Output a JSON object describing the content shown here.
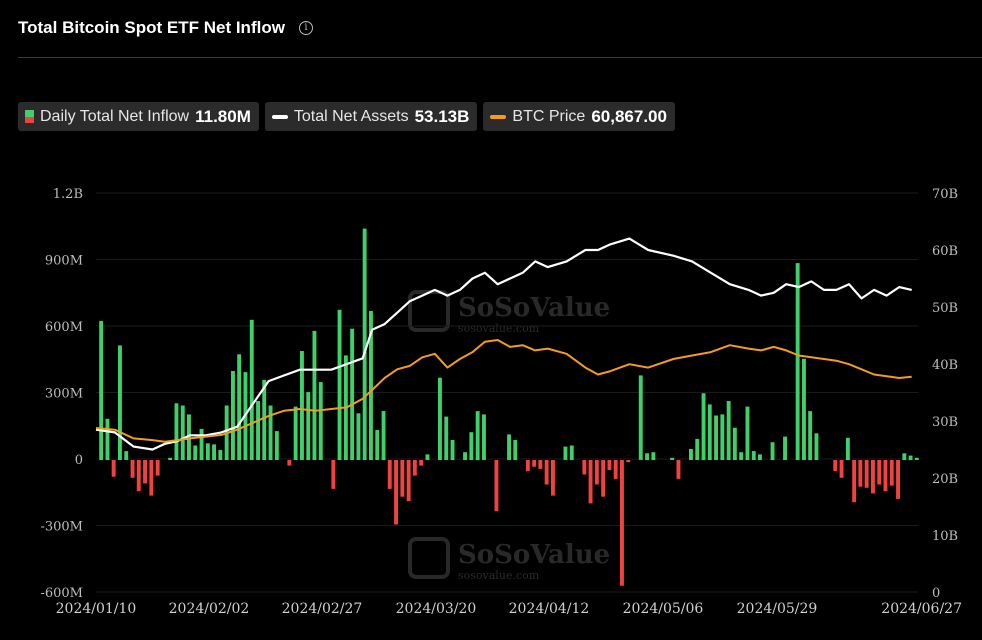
{
  "header": {
    "title": "Total Bitcoin Spot ETF Net Inflow",
    "info_icon": "info-icon"
  },
  "legend": [
    {
      "label": "Daily Total Net Inflow",
      "value": "11.80M",
      "swatch": "bar"
    },
    {
      "label": "Total Net Assets",
      "value": "53.13B",
      "swatch": "line",
      "color": "#ffffff"
    },
    {
      "label": "BTC Price",
      "value": "60,867.00",
      "swatch": "line",
      "color": "#f39c1f"
    }
  ],
  "watermark": {
    "brand": "SoSoValue",
    "site": "sosovalue.com"
  },
  "colors": {
    "positive": "#3ed069",
    "negative": "#f2423f",
    "assets": "#ffffff",
    "price": "#f39c1f"
  },
  "chart_data": {
    "type": "bar",
    "x_labels": [
      "2024/01/10",
      "2024/02/02",
      "2024/02/27",
      "2024/03/20",
      "2024/04/12",
      "2024/05/06",
      "2024/05/29",
      "2024/06/27"
    ],
    "left_axis": {
      "ticks": [
        "1.2B",
        "900M",
        "600M",
        "300M",
        "0",
        "-300M",
        "-600M"
      ],
      "range_M": [
        -600,
        1200
      ]
    },
    "right_axis": {
      "ticks": [
        "70B",
        "60B",
        "50B",
        "40B",
        "30B",
        "20B",
        "10B",
        "0"
      ],
      "range_B": [
        0,
        70
      ]
    },
    "series": [
      {
        "name": "Daily Total Net Inflow",
        "unit": "M",
        "values": [
          625,
          185,
          -75,
          515,
          40,
          -80,
          -140,
          -105,
          -160,
          -70,
          0,
          10,
          255,
          245,
          205,
          65,
          140,
          75,
          70,
          45,
          245,
          400,
          475,
          395,
          630,
          265,
          360,
          245,
          130,
          0,
          -25,
          240,
          490,
          305,
          580,
          350,
          0,
          -130,
          675,
          470,
          590,
          210,
          1040,
          670,
          135,
          220,
          -130,
          -290,
          -165,
          -185,
          -70,
          -25,
          25,
          0,
          370,
          195,
          90,
          0,
          35,
          125,
          220,
          205,
          0,
          -230,
          0,
          115,
          90,
          0,
          -50,
          -30,
          -40,
          -110,
          -160,
          0,
          60,
          65,
          0,
          -65,
          -195,
          -110,
          -165,
          -45,
          -85,
          -565,
          -10,
          0,
          380,
          30,
          35,
          0,
          0,
          10,
          -85,
          0,
          50,
          95,
          300,
          250,
          200,
          205,
          265,
          145,
          35,
          240,
          40,
          25,
          0,
          80,
          0,
          105,
          0,
          885,
          455,
          220,
          120,
          0,
          0,
          -50,
          -80,
          100,
          -190,
          -120,
          -125,
          -150,
          -110,
          -140,
          -115,
          -175,
          30,
          20,
          10
        ],
        "color_pos": "#3ed069",
        "color_neg": "#f2423f"
      },
      {
        "name": "Total Net Assets",
        "unit": "B",
        "values": [
          [
            0,
            28.5
          ],
          [
            6,
            28
          ],
          [
            12,
            25.5
          ],
          [
            18,
            25
          ],
          [
            22,
            26
          ],
          [
            26,
            26.5
          ],
          [
            30,
            27.5
          ],
          [
            35,
            27.5
          ],
          [
            40,
            28
          ],
          [
            45,
            29
          ],
          [
            50,
            33
          ],
          [
            55,
            37
          ],
          [
            60,
            38
          ],
          [
            65,
            39
          ],
          [
            70,
            39
          ],
          [
            75,
            39
          ],
          [
            80,
            40
          ],
          [
            85,
            41
          ],
          [
            88,
            46
          ],
          [
            92,
            47
          ],
          [
            96,
            49
          ],
          [
            100,
            51
          ],
          [
            104,
            52
          ],
          [
            108,
            53
          ],
          [
            112,
            52
          ],
          [
            116,
            53
          ],
          [
            120,
            55
          ],
          [
            124,
            56
          ],
          [
            128,
            54
          ],
          [
            132,
            55
          ],
          [
            136,
            56
          ],
          [
            140,
            58
          ],
          [
            144,
            57
          ],
          [
            150,
            58
          ],
          [
            156,
            60
          ],
          [
            160,
            60
          ],
          [
            164,
            61
          ],
          [
            170,
            62
          ],
          [
            176,
            60
          ],
          [
            184,
            59
          ],
          [
            190,
            58
          ],
          [
            196,
            56
          ],
          [
            202,
            54
          ],
          [
            208,
            53
          ],
          [
            212,
            52
          ],
          [
            216,
            52.5
          ],
          [
            220,
            54
          ],
          [
            224,
            53.5
          ],
          [
            228,
            54.5
          ],
          [
            232,
            53
          ],
          [
            236,
            53
          ],
          [
            240,
            54
          ],
          [
            244,
            51.5
          ],
          [
            248,
            53
          ],
          [
            252,
            52
          ],
          [
            256,
            53.5
          ],
          [
            260,
            53
          ]
        ]
      },
      {
        "name": "BTC Price",
        "unit": "USD",
        "values": [
          [
            0,
            46000
          ],
          [
            6,
            45500
          ],
          [
            12,
            43000
          ],
          [
            18,
            42500
          ],
          [
            22,
            42000
          ],
          [
            26,
            42500
          ],
          [
            30,
            43000
          ],
          [
            35,
            43500
          ],
          [
            40,
            44000
          ],
          [
            45,
            45500
          ],
          [
            50,
            47500
          ],
          [
            55,
            49500
          ],
          [
            60,
            51000
          ],
          [
            65,
            51500
          ],
          [
            70,
            51000
          ],
          [
            75,
            51500
          ],
          [
            80,
            52000
          ],
          [
            85,
            54500
          ],
          [
            88,
            57000
          ],
          [
            92,
            60500
          ],
          [
            96,
            63000
          ],
          [
            100,
            64000
          ],
          [
            104,
            66500
          ],
          [
            108,
            67500
          ],
          [
            112,
            63500
          ],
          [
            116,
            66000
          ],
          [
            120,
            68000
          ],
          [
            124,
            71000
          ],
          [
            128,
            71500
          ],
          [
            132,
            69500
          ],
          [
            136,
            70000
          ],
          [
            140,
            68500
          ],
          [
            144,
            69000
          ],
          [
            150,
            67500
          ],
          [
            156,
            63500
          ],
          [
            160,
            61500
          ],
          [
            164,
            62500
          ],
          [
            170,
            64500
          ],
          [
            176,
            63500
          ],
          [
            184,
            66000
          ],
          [
            190,
            67000
          ],
          [
            196,
            68000
          ],
          [
            202,
            70000
          ],
          [
            208,
            69000
          ],
          [
            212,
            68500
          ],
          [
            216,
            69500
          ],
          [
            220,
            68500
          ],
          [
            224,
            67000
          ],
          [
            228,
            66500
          ],
          [
            232,
            66000
          ],
          [
            236,
            65500
          ],
          [
            240,
            64500
          ],
          [
            244,
            63000
          ],
          [
            248,
            61500
          ],
          [
            252,
            61000
          ],
          [
            256,
            60500
          ],
          [
            260,
            60867
          ]
        ],
        "axis_note": "drawn on shared right axis, scaled to asset line"
      }
    ]
  }
}
